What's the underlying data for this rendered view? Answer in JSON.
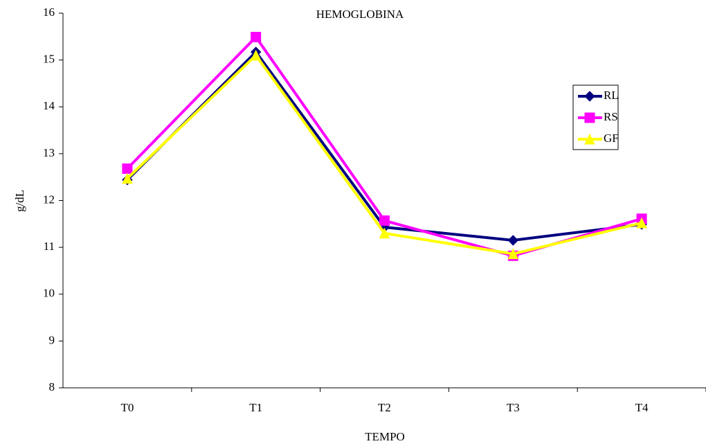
{
  "chart_data": {
    "type": "line",
    "title": "HEMOGLOBINA",
    "x_label": "TEMPO",
    "y_label": "g/dL",
    "categories": [
      "T0",
      "T1",
      "T2",
      "T3",
      "T4"
    ],
    "series": [
      {
        "name": "RL",
        "color": "#000080",
        "marker": "diamond",
        "values": [
          12.44,
          15.17,
          11.43,
          11.15,
          11.49
        ]
      },
      {
        "name": "RS",
        "color": "#ff00ff",
        "marker": "square",
        "values": [
          12.68,
          15.49,
          11.57,
          10.82,
          11.61
        ]
      },
      {
        "name": "GF",
        "color": "#ffff00",
        "marker": "triangle",
        "values": [
          12.47,
          15.1,
          11.3,
          10.86,
          11.52
        ]
      }
    ],
    "ylim": [
      8,
      16
    ],
    "yticks": [
      8,
      9,
      10,
      11,
      12,
      13,
      14,
      15,
      16
    ],
    "grid": false,
    "legend": "right"
  }
}
